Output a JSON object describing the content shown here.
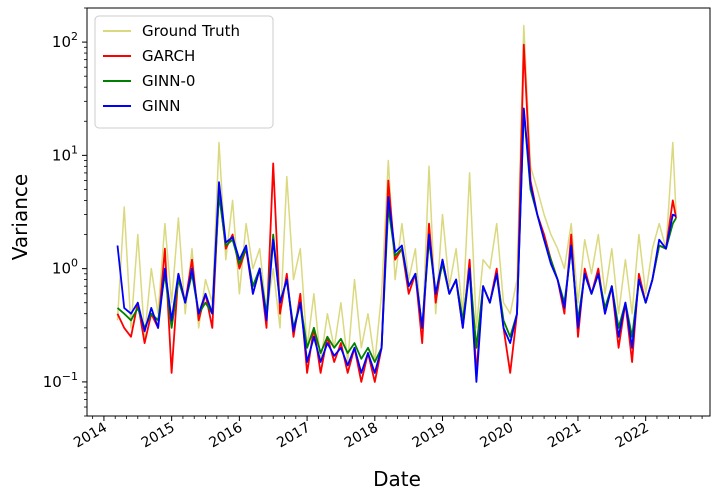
{
  "chart_data": {
    "type": "line",
    "title": "",
    "xlabel": "Date",
    "ylabel": "Variance",
    "yscale": "log",
    "ylim": [
      0.05,
      200
    ],
    "xlim": [
      2013.75,
      2022.95
    ],
    "x_ticks": [
      {
        "value": 2014,
        "label": "2014"
      },
      {
        "value": 2015,
        "label": "2015"
      },
      {
        "value": 2016,
        "label": "2016"
      },
      {
        "value": 2017,
        "label": "2017"
      },
      {
        "value": 2018,
        "label": "2018"
      },
      {
        "value": 2019,
        "label": "2019"
      },
      {
        "value": 2020,
        "label": "2020"
      },
      {
        "value": 2021,
        "label": "2021"
      },
      {
        "value": 2022,
        "label": "2022"
      }
    ],
    "y_ticks": [
      {
        "value": 0.1,
        "base": "10",
        "exp": "−1"
      },
      {
        "value": 1,
        "base": "10",
        "exp": "0"
      },
      {
        "value": 10,
        "base": "10",
        "exp": "1"
      },
      {
        "value": 100,
        "base": "10",
        "exp": "2"
      }
    ],
    "legend_position": "top-left",
    "series": [
      {
        "name": "Ground Truth",
        "color": "#dbd97f",
        "x": [
          2014.2,
          2014.3,
          2014.4,
          2014.5,
          2014.6,
          2014.7,
          2014.8,
          2014.9,
          2015.0,
          2015.1,
          2015.2,
          2015.3,
          2015.4,
          2015.5,
          2015.6,
          2015.7,
          2015.8,
          2015.9,
          2016.0,
          2016.1,
          2016.2,
          2016.3,
          2016.4,
          2016.5,
          2016.6,
          2016.7,
          2016.8,
          2016.9,
          2017.0,
          2017.1,
          2017.2,
          2017.3,
          2017.4,
          2017.5,
          2017.6,
          2017.7,
          2017.8,
          2017.9,
          2018.0,
          2018.1,
          2018.2,
          2018.3,
          2018.4,
          2018.5,
          2018.6,
          2018.7,
          2018.8,
          2018.9,
          2019.0,
          2019.1,
          2019.2,
          2019.3,
          2019.4,
          2019.5,
          2019.6,
          2019.7,
          2019.8,
          2019.9,
          2020.0,
          2020.1,
          2020.2,
          2020.3,
          2020.4,
          2020.5,
          2020.6,
          2020.7,
          2020.8,
          2020.9,
          2021.0,
          2021.1,
          2021.2,
          2021.3,
          2021.4,
          2021.5,
          2021.6,
          2021.7,
          2021.8,
          2021.9,
          2022.0,
          2022.1,
          2022.2,
          2022.3,
          2022.4,
          2022.45
        ],
        "values": [
          0.35,
          3.5,
          0.3,
          2.0,
          0.25,
          1.0,
          0.4,
          2.5,
          0.5,
          2.8,
          0.4,
          1.5,
          0.3,
          0.8,
          0.5,
          13.0,
          1.2,
          4.0,
          0.6,
          2.5,
          1.0,
          1.5,
          0.4,
          1.0,
          0.3,
          6.5,
          0.8,
          1.5,
          0.2,
          0.6,
          0.15,
          0.4,
          0.2,
          0.5,
          0.15,
          0.8,
          0.2,
          0.4,
          0.15,
          0.6,
          9.0,
          0.8,
          2.5,
          0.8,
          1.5,
          0.25,
          8.0,
          0.4,
          3.0,
          0.7,
          1.5,
          0.4,
          7.0,
          0.3,
          1.2,
          1.0,
          2.5,
          0.5,
          0.4,
          0.8,
          140,
          8.0,
          5.0,
          3.0,
          2.0,
          1.5,
          1.0,
          2.5,
          0.5,
          1.8,
          0.9,
          2.0,
          0.6,
          1.5,
          0.4,
          1.2,
          0.4,
          2.0,
          0.6,
          1.5,
          2.5,
          1.5,
          13.0,
          3.0
        ]
      },
      {
        "name": "GARCH",
        "color": "#ff0000",
        "x": [
          2014.2,
          2014.3,
          2014.4,
          2014.5,
          2014.6,
          2014.7,
          2014.8,
          2014.9,
          2015.0,
          2015.1,
          2015.2,
          2015.3,
          2015.4,
          2015.5,
          2015.6,
          2015.7,
          2015.8,
          2015.9,
          2016.0,
          2016.1,
          2016.2,
          2016.3,
          2016.4,
          2016.5,
          2016.6,
          2016.7,
          2016.8,
          2016.9,
          2017.0,
          2017.1,
          2017.2,
          2017.3,
          2017.4,
          2017.5,
          2017.6,
          2017.7,
          2017.8,
          2017.9,
          2018.0,
          2018.1,
          2018.2,
          2018.3,
          2018.4,
          2018.5,
          2018.6,
          2018.7,
          2018.8,
          2018.9,
          2019.0,
          2019.1,
          2019.2,
          2019.3,
          2019.4,
          2019.5,
          2019.6,
          2019.7,
          2019.8,
          2019.9,
          2020.0,
          2020.1,
          2020.2,
          2020.3,
          2020.4,
          2020.5,
          2020.6,
          2020.7,
          2020.8,
          2020.9,
          2021.0,
          2021.1,
          2021.2,
          2021.3,
          2021.4,
          2021.5,
          2021.6,
          2021.7,
          2021.8,
          2021.9,
          2022.0,
          2022.1,
          2022.2,
          2022.3,
          2022.4,
          2022.45
        ],
        "values": [
          0.4,
          0.3,
          0.25,
          0.5,
          0.22,
          0.4,
          0.3,
          1.5,
          0.12,
          0.9,
          0.5,
          1.2,
          0.35,
          0.6,
          0.3,
          5.0,
          1.5,
          2.0,
          1.0,
          1.5,
          0.6,
          1.0,
          0.3,
          8.5,
          0.4,
          0.9,
          0.25,
          0.6,
          0.12,
          0.3,
          0.12,
          0.25,
          0.15,
          0.22,
          0.12,
          0.2,
          0.1,
          0.18,
          0.1,
          0.2,
          6.0,
          1.2,
          1.5,
          0.6,
          0.9,
          0.22,
          2.5,
          0.5,
          1.2,
          0.6,
          0.8,
          0.3,
          1.2,
          0.12,
          0.7,
          0.5,
          1.0,
          0.3,
          0.12,
          0.4,
          95,
          6.0,
          3.0,
          2.0,
          1.2,
          0.8,
          0.4,
          2.0,
          0.25,
          1.0,
          0.6,
          1.0,
          0.4,
          0.7,
          0.2,
          0.5,
          0.15,
          0.9,
          0.5,
          0.8,
          1.6,
          1.5,
          4.0,
          2.8
        ]
      },
      {
        "name": "GINN-0",
        "color": "#008000",
        "x": [
          2014.2,
          2014.3,
          2014.4,
          2014.5,
          2014.6,
          2014.7,
          2014.8,
          2014.9,
          2015.0,
          2015.1,
          2015.2,
          2015.3,
          2015.4,
          2015.5,
          2015.6,
          2015.7,
          2015.8,
          2015.9,
          2016.0,
          2016.1,
          2016.2,
          2016.3,
          2016.4,
          2016.5,
          2016.6,
          2016.7,
          2016.8,
          2016.9,
          2017.0,
          2017.1,
          2017.2,
          2017.3,
          2017.4,
          2017.5,
          2017.6,
          2017.7,
          2017.8,
          2017.9,
          2018.0,
          2018.1,
          2018.2,
          2018.3,
          2018.4,
          2018.5,
          2018.6,
          2018.7,
          2018.8,
          2018.9,
          2019.0,
          2019.1,
          2019.2,
          2019.3,
          2019.4,
          2019.5,
          2019.6,
          2019.7,
          2019.8,
          2019.9,
          2020.0,
          2020.1,
          2020.2,
          2020.3,
          2020.4,
          2020.5,
          2020.6,
          2020.7,
          2020.8,
          2020.9,
          2021.0,
          2021.1,
          2021.2,
          2021.3,
          2021.4,
          2021.5,
          2021.6,
          2021.7,
          2021.8,
          2021.9,
          2022.0,
          2022.1,
          2022.2,
          2022.3,
          2022.4,
          2022.45
        ],
        "values": [
          0.45,
          0.4,
          0.35,
          0.45,
          0.3,
          0.4,
          0.35,
          0.9,
          0.3,
          0.8,
          0.5,
          0.9,
          0.4,
          0.5,
          0.4,
          4.5,
          1.6,
          1.8,
          1.1,
          1.5,
          0.7,
          1.0,
          0.4,
          2.0,
          0.5,
          0.8,
          0.3,
          0.5,
          0.2,
          0.3,
          0.18,
          0.25,
          0.2,
          0.24,
          0.18,
          0.22,
          0.16,
          0.2,
          0.15,
          0.2,
          3.5,
          1.3,
          1.5,
          0.7,
          0.9,
          0.3,
          1.8,
          0.6,
          1.1,
          0.6,
          0.8,
          0.35,
          1.0,
          0.2,
          0.7,
          0.5,
          0.9,
          0.35,
          0.25,
          0.4,
          25,
          5.0,
          3.0,
          1.8,
          1.2,
          0.8,
          0.5,
          1.5,
          0.35,
          0.9,
          0.6,
          0.9,
          0.45,
          0.7,
          0.3,
          0.5,
          0.25,
          0.8,
          0.5,
          0.8,
          1.6,
          1.5,
          2.5,
          2.8
        ]
      },
      {
        "name": "GINN",
        "color": "#0000ff",
        "x": [
          2014.2,
          2014.3,
          2014.4,
          2014.5,
          2014.6,
          2014.7,
          2014.8,
          2014.9,
          2015.0,
          2015.1,
          2015.2,
          2015.3,
          2015.4,
          2015.5,
          2015.6,
          2015.7,
          2015.8,
          2015.9,
          2016.0,
          2016.1,
          2016.2,
          2016.3,
          2016.4,
          2016.5,
          2016.6,
          2016.7,
          2016.8,
          2016.9,
          2017.0,
          2017.1,
          2017.2,
          2017.3,
          2017.4,
          2017.5,
          2017.6,
          2017.7,
          2017.8,
          2017.9,
          2018.0,
          2018.1,
          2018.2,
          2018.3,
          2018.4,
          2018.5,
          2018.6,
          2018.7,
          2018.8,
          2018.9,
          2019.0,
          2019.1,
          2019.2,
          2019.3,
          2019.4,
          2019.5,
          2019.6,
          2019.7,
          2019.8,
          2019.9,
          2020.0,
          2020.1,
          2020.2,
          2020.3,
          2020.4,
          2020.5,
          2020.6,
          2020.7,
          2020.8,
          2020.9,
          2021.0,
          2021.1,
          2021.2,
          2021.3,
          2021.4,
          2021.5,
          2021.6,
          2021.7,
          2021.8,
          2021.9,
          2022.0,
          2022.1,
          2022.2,
          2022.3,
          2022.4,
          2022.45
        ],
        "values": [
          1.6,
          0.45,
          0.4,
          0.5,
          0.28,
          0.45,
          0.3,
          1.0,
          0.35,
          0.9,
          0.5,
          1.0,
          0.4,
          0.6,
          0.4,
          5.8,
          1.7,
          1.9,
          1.2,
          1.6,
          0.6,
          1.0,
          0.35,
          1.8,
          0.5,
          0.8,
          0.28,
          0.5,
          0.15,
          0.25,
          0.15,
          0.22,
          0.17,
          0.2,
          0.14,
          0.2,
          0.12,
          0.18,
          0.12,
          0.2,
          4.3,
          1.4,
          1.6,
          0.7,
          0.9,
          0.3,
          2.0,
          0.6,
          1.2,
          0.6,
          0.8,
          0.3,
          1.0,
          0.1,
          0.7,
          0.5,
          0.9,
          0.3,
          0.22,
          0.4,
          26,
          5.5,
          3.0,
          1.8,
          1.1,
          0.8,
          0.45,
          1.6,
          0.3,
          0.9,
          0.6,
          0.9,
          0.4,
          0.7,
          0.25,
          0.5,
          0.2,
          0.8,
          0.5,
          0.8,
          1.8,
          1.5,
          3.0,
          2.9
        ]
      }
    ]
  }
}
